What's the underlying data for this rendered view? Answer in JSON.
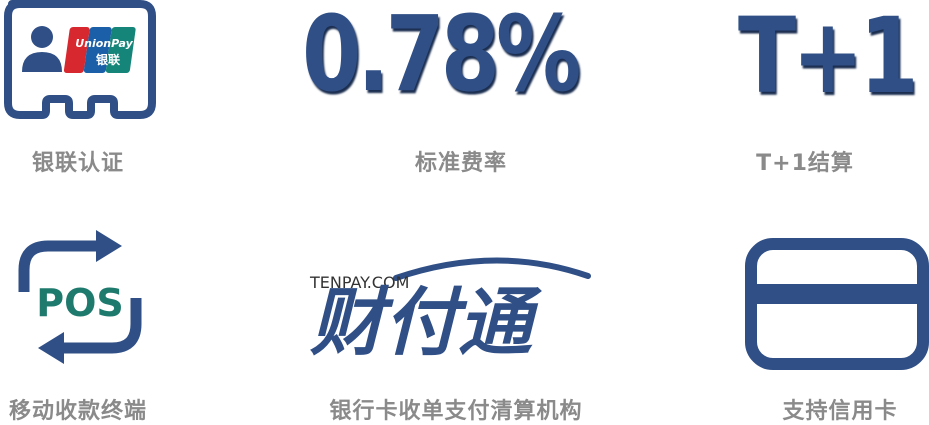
{
  "features": {
    "unionpay": {
      "logo_line1": "UnionPay",
      "logo_line2": "银联",
      "caption": "银联认证"
    },
    "rate": {
      "value": "0.78%",
      "caption": "标准费率"
    },
    "settlement": {
      "value": "T+1",
      "caption": "T+1结算"
    },
    "pos": {
      "label": "POS",
      "caption": "移动收款终端"
    },
    "tenpay": {
      "domain": "TENPAY.COM",
      "brand": "财付通",
      "caption": "银行卡收单支付清算机构"
    },
    "card": {
      "caption": "支持信用卡"
    }
  },
  "colors": {
    "navy": "#2f4f86",
    "navy_dark": "#233c68",
    "teal": "#1f7a6e",
    "caption_gray": "#8a8a8a",
    "unionpay_red": "#d7282f",
    "unionpay_blue": "#1a5fa8",
    "unionpay_teal": "#15857a"
  }
}
